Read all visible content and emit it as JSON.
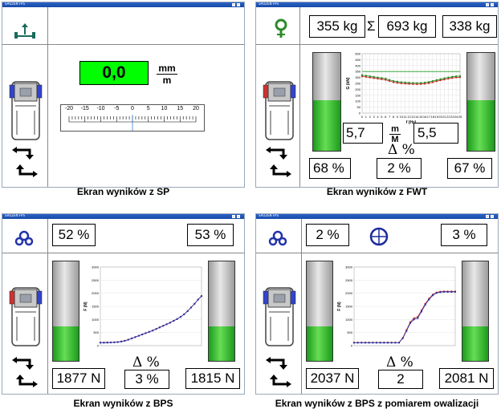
{
  "panels": {
    "sp": {
      "title": "SAUZEN FPS",
      "value": "0,0",
      "unit_num": "mm",
      "unit_den": "m",
      "scale_labels": [
        "-20",
        "-15",
        "-10",
        "-5",
        "0",
        "5",
        "10",
        "15",
        "20"
      ],
      "caption": "Ekran wyników z SP"
    },
    "fwt": {
      "title": "SAUZEN FPS",
      "weight_left": "355 kg",
      "sigma": "Σ",
      "weight_total": "693 kg",
      "weight_right": "338 kg",
      "ratio_left": "5,7",
      "unit_num": "m",
      "unit_den": "M",
      "ratio_right": "5,5",
      "delta": "Δ %",
      "pct_left": "68 %",
      "pct_mid": "2 %",
      "pct_right": "67 %",
      "tank_left_level": 0.52,
      "tank_right_level": 0.52,
      "chart_ylabel": "G (kN)",
      "chart_xlabel": "f (Hz)",
      "caption": "Ekran wyników z FWT"
    },
    "bps": {
      "title": "SAUZEN FPS",
      "pct_left": "52 %",
      "pct_right": "53 %",
      "force_left": "1877 N",
      "delta": "Δ %",
      "pct_mid": "3 %",
      "force_right": "1815 N",
      "tank_left_level": 0.35,
      "tank_right_level": 0.35,
      "chart_ylabel": "F (N)",
      "caption": "Ekran wyników z BPS"
    },
    "bps2": {
      "title": "SAUZEN FPS",
      "pct_left": "2 %",
      "pct_right": "3 %",
      "force_left": "2037 N",
      "delta": "Δ %",
      "mid": "2",
      "force_right": "2081 N",
      "tank_left_level": 0.35,
      "tank_right_level": 0.35,
      "chart_ylabel": "F (N)",
      "caption": "Ekran wyników z BPS z pomiarem owalizacji"
    }
  },
  "colors": {
    "green_display": "#00ff00",
    "tank_green": "#33bb33",
    "series_red": "#cc2222",
    "series_green": "#228822",
    "series_blue": "#2233aa"
  },
  "chart_data": [
    {
      "type": "line",
      "ylabel": "G (kN)",
      "xlabel": "f (Hz)",
      "x": [
        0,
        1,
        2,
        3,
        4,
        5,
        6,
        7,
        8,
        9,
        10,
        11,
        12,
        13,
        14,
        15,
        16,
        17,
        18,
        19,
        20,
        21,
        22,
        23,
        24,
        25
      ],
      "yticks": [
        "0",
        "50",
        "100",
        "150",
        "200",
        "250",
        "300",
        "350",
        "400",
        "450",
        "500"
      ],
      "series": [
        {
          "values": [
            310,
            305,
            300,
            295,
            290,
            285,
            280,
            270,
            260,
            255,
            250,
            248,
            246,
            244,
            243,
            244,
            247,
            252,
            260,
            268,
            276,
            283,
            290,
            296,
            300,
            302
          ]
        },
        {
          "values": [
            320,
            315,
            310,
            305,
            300,
            295,
            290,
            280,
            270,
            265,
            260,
            258,
            256,
            254,
            253,
            254,
            257,
            262,
            270,
            278,
            286,
            293,
            300,
            306,
            310,
            312
          ]
        }
      ]
    },
    {
      "type": "line",
      "ylabel": "F (N)",
      "yticks": [
        "0",
        "500",
        "1000",
        "1500",
        "2000",
        "2500",
        "3000"
      ],
      "series": [
        {
          "values": [
            120,
            120,
            122,
            125,
            130,
            140,
            160,
            190,
            230,
            280,
            330,
            380,
            430,
            480,
            530,
            580,
            640,
            700,
            760,
            820,
            880,
            950,
            1020,
            1100,
            1200,
            1320,
            1460,
            1600,
            1760,
            1900
          ]
        },
        {
          "values": [
            110,
            112,
            114,
            118,
            124,
            134,
            154,
            184,
            224,
            274,
            324,
            374,
            424,
            474,
            524,
            574,
            634,
            694,
            754,
            814,
            874,
            944,
            1014,
            1094,
            1194,
            1314,
            1454,
            1594,
            1754,
            1890
          ]
        }
      ]
    },
    {
      "type": "line",
      "ylabel": "F (N)",
      "yticks": [
        "0",
        "500",
        "1000",
        "1500",
        "2000",
        "2500",
        "3000"
      ],
      "series": [
        {
          "values": [
            120,
            120,
            120,
            120,
            120,
            120,
            120,
            120,
            120,
            120,
            120,
            120,
            120,
            300,
            600,
            900,
            1050,
            1100,
            1350,
            1600,
            1800,
            1950,
            2030,
            2060,
            2070,
            2070,
            2070,
            2070
          ]
        },
        {
          "values": [
            110,
            110,
            110,
            110,
            110,
            110,
            110,
            110,
            110,
            110,
            110,
            110,
            110,
            280,
            560,
            860,
            1000,
            1050,
            1300,
            1560,
            1760,
            1920,
            2010,
            2040,
            2050,
            2050,
            2050,
            2050
          ]
        }
      ]
    }
  ]
}
